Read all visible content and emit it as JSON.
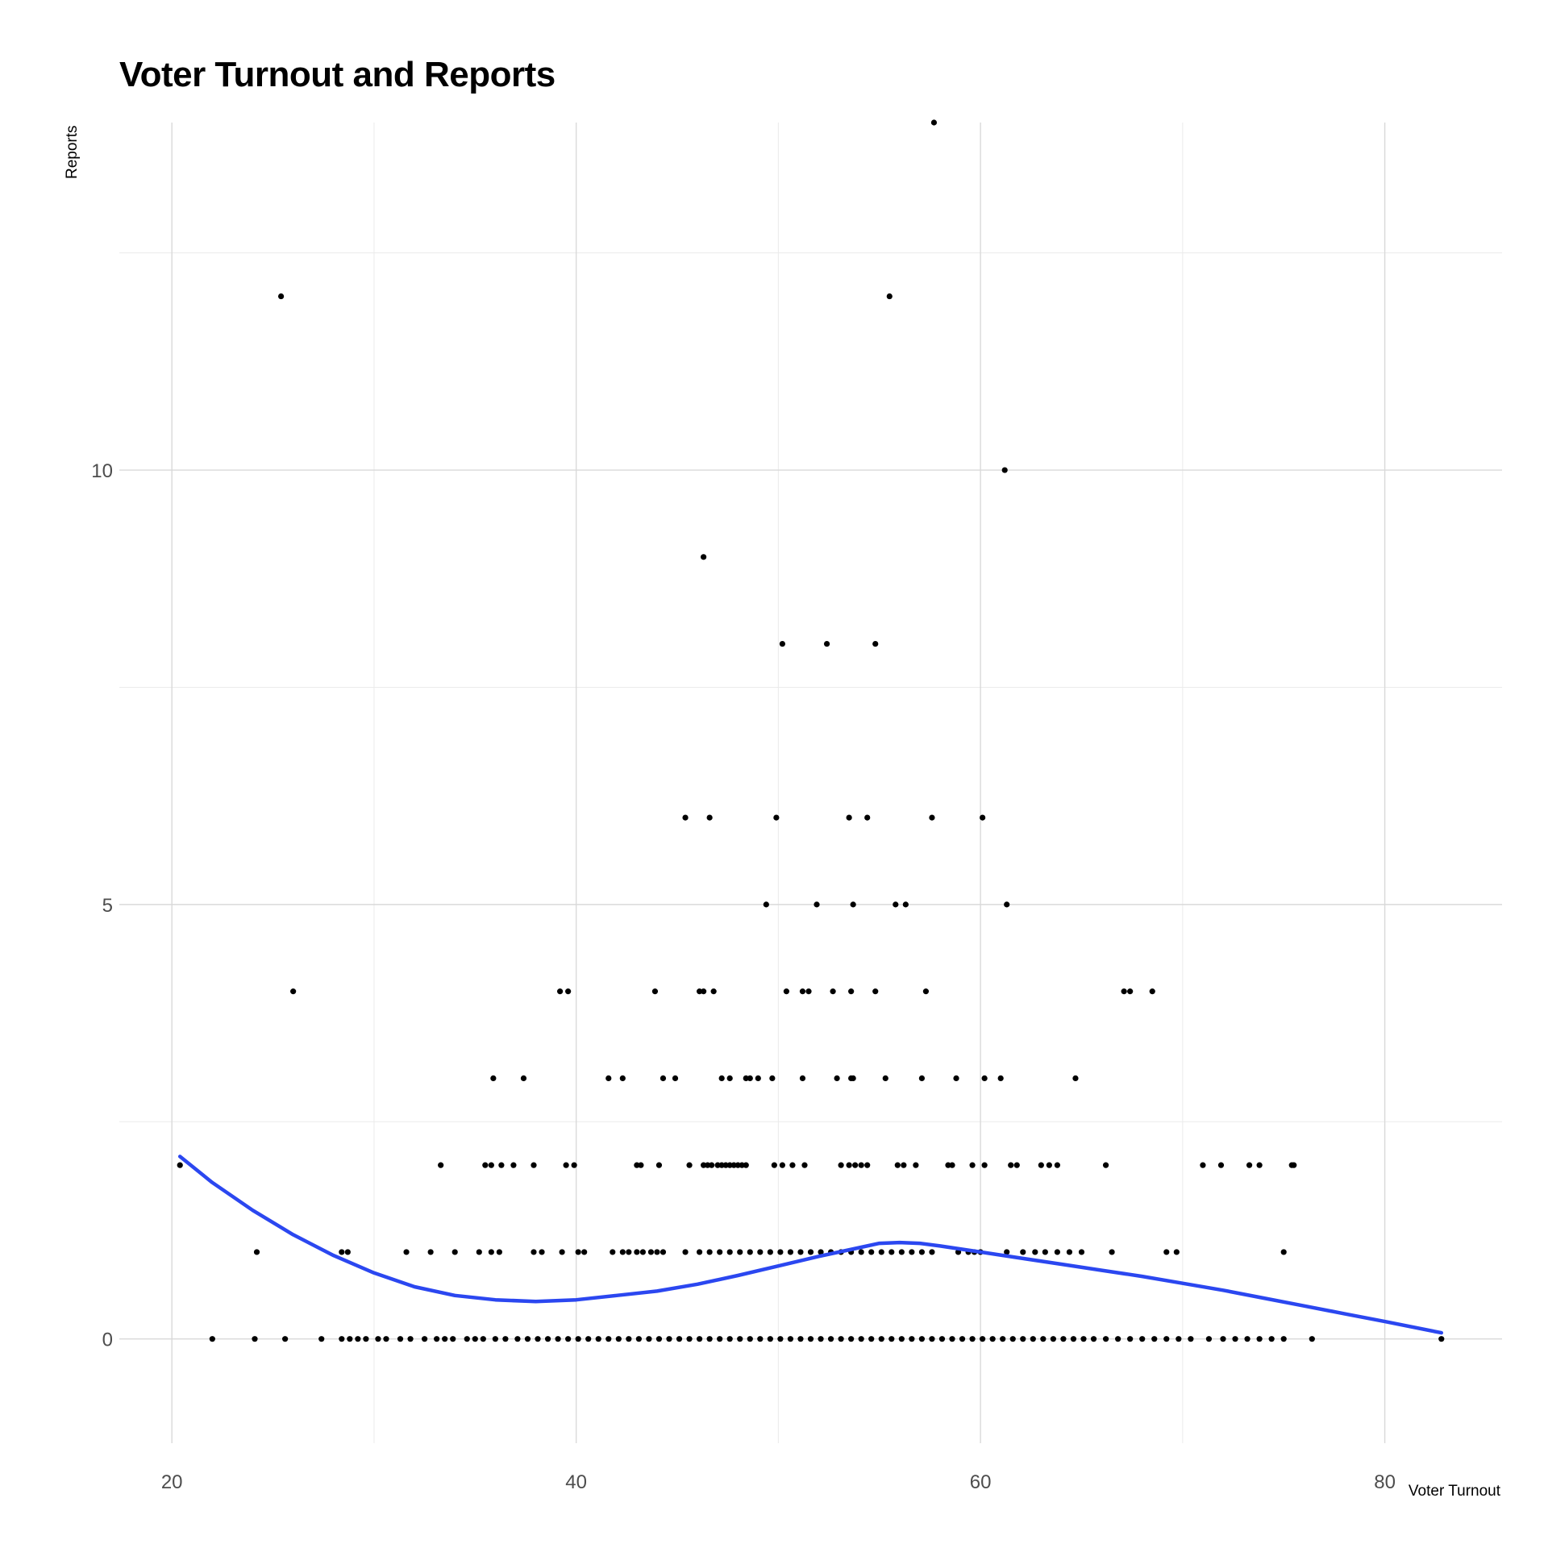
{
  "chart_data": {
    "type": "scatter",
    "title": "Voter Turnout and Reports",
    "xlabel": "Voter Turnout",
    "ylabel": "Reports",
    "xlim": [
      17.4,
      85.8
    ],
    "ylim": [
      -1.2,
      14.0
    ],
    "x_ticks": [
      20,
      40,
      60,
      80
    ],
    "y_ticks": [
      0,
      5,
      10
    ],
    "x_minor": [
      30,
      50,
      70
    ],
    "y_minor": [
      2.5,
      7.5,
      12.5
    ],
    "grid": true,
    "point_color": "#000000",
    "line_color": "#2B47F0",
    "series": [
      {
        "kind": "points",
        "points": [
          [
            20.4,
            2
          ],
          [
            25.4,
            12
          ],
          [
            26.0,
            4
          ],
          [
            24.2,
            1
          ],
          [
            28.4,
            1
          ],
          [
            28.7,
            1
          ],
          [
            33.3,
            2
          ],
          [
            31.6,
            1
          ],
          [
            32.8,
            1
          ],
          [
            34.0,
            1
          ],
          [
            35.2,
            1
          ],
          [
            35.8,
            1
          ],
          [
            36.2,
            1
          ],
          [
            35.5,
            2
          ],
          [
            35.8,
            2
          ],
          [
            36.3,
            2
          ],
          [
            36.9,
            2
          ],
          [
            37.9,
            2
          ],
          [
            35.9,
            3
          ],
          [
            37.4,
            3
          ],
          [
            39.2,
            4
          ],
          [
            39.6,
            4
          ],
          [
            39.5,
            2
          ],
          [
            39.9,
            2
          ],
          [
            37.9,
            1
          ],
          [
            38.3,
            1
          ],
          [
            39.3,
            1
          ],
          [
            40.1,
            1
          ],
          [
            40.4,
            1
          ],
          [
            41.8,
            1
          ],
          [
            42.3,
            1
          ],
          [
            42.6,
            1
          ],
          [
            43.0,
            1
          ],
          [
            43.3,
            1
          ],
          [
            43.7,
            1
          ],
          [
            44.0,
            1
          ],
          [
            44.3,
            1
          ],
          [
            41.6,
            3
          ],
          [
            42.3,
            3
          ],
          [
            44.3,
            3
          ],
          [
            43.9,
            4
          ],
          [
            43.0,
            2
          ],
          [
            43.2,
            2
          ],
          [
            44.1,
            2
          ],
          [
            44.9,
            3
          ],
          [
            45.4,
            6
          ],
          [
            45.6,
            2
          ],
          [
            46.1,
            4
          ],
          [
            46.3,
            4
          ],
          [
            46.8,
            4
          ],
          [
            46.3,
            2
          ],
          [
            46.5,
            2
          ],
          [
            46.7,
            2
          ],
          [
            47.0,
            2
          ],
          [
            47.2,
            2
          ],
          [
            47.4,
            2
          ],
          [
            47.6,
            2
          ],
          [
            47.8,
            2
          ],
          [
            48.0,
            2
          ],
          [
            48.2,
            2
          ],
          [
            48.4,
            2
          ],
          [
            46.3,
            9
          ],
          [
            46.6,
            6
          ],
          [
            47.2,
            3
          ],
          [
            47.6,
            3
          ],
          [
            48.4,
            3
          ],
          [
            48.6,
            3
          ],
          [
            49.0,
            3
          ],
          [
            49.7,
            3
          ],
          [
            49.4,
            5
          ],
          [
            49.9,
            6
          ],
          [
            50.2,
            8
          ],
          [
            50.4,
            4
          ],
          [
            49.8,
            2
          ],
          [
            50.2,
            2
          ],
          [
            50.7,
            2
          ],
          [
            51.3,
            2
          ],
          [
            51.2,
            4
          ],
          [
            51.5,
            4
          ],
          [
            51.2,
            3
          ],
          [
            51.9,
            5
          ],
          [
            52.7,
            4
          ],
          [
            52.4,
            8
          ],
          [
            52.9,
            3
          ],
          [
            53.6,
            3
          ],
          [
            53.7,
            3
          ],
          [
            53.1,
            2
          ],
          [
            53.5,
            2
          ],
          [
            53.8,
            2
          ],
          [
            54.1,
            2
          ],
          [
            54.4,
            2
          ],
          [
            53.6,
            4
          ],
          [
            53.5,
            6
          ],
          [
            53.7,
            5
          ],
          [
            54.4,
            6
          ],
          [
            54.8,
            4
          ],
          [
            54.8,
            8
          ],
          [
            55.3,
            3
          ],
          [
            55.5,
            12
          ],
          [
            55.8,
            5
          ],
          [
            56.3,
            5
          ],
          [
            55.9,
            2
          ],
          [
            56.2,
            2
          ],
          [
            56.8,
            2
          ],
          [
            57.1,
            3
          ],
          [
            57.3,
            4
          ],
          [
            57.6,
            6
          ],
          [
            57.7,
            14
          ],
          [
            58.4,
            2
          ],
          [
            58.6,
            2
          ],
          [
            58.8,
            3
          ],
          [
            59.6,
            2
          ],
          [
            60.2,
            3
          ],
          [
            60.2,
            2
          ],
          [
            61.0,
            3
          ],
          [
            61.3,
            5
          ],
          [
            61.2,
            10
          ],
          [
            60.1,
            6
          ],
          [
            61.5,
            2
          ],
          [
            61.8,
            2
          ],
          [
            63.0,
            2
          ],
          [
            63.4,
            2
          ],
          [
            63.8,
            2
          ],
          [
            64.7,
            3
          ],
          [
            66.2,
            2
          ],
          [
            66.5,
            1
          ],
          [
            67.1,
            4
          ],
          [
            67.4,
            4
          ],
          [
            68.5,
            4
          ],
          [
            69.2,
            1
          ],
          [
            69.7,
            1
          ],
          [
            71.0,
            2
          ],
          [
            71.9,
            2
          ],
          [
            73.3,
            2
          ],
          [
            73.8,
            2
          ],
          [
            75.0,
            1
          ],
          [
            75.4,
            2
          ],
          [
            75.5,
            2
          ],
          [
            58.9,
            1
          ],
          [
            59.4,
            1
          ],
          [
            59.7,
            1
          ],
          [
            60.0,
            1
          ],
          [
            61.3,
            1
          ],
          [
            62.1,
            1
          ],
          [
            62.7,
            1
          ],
          [
            63.2,
            1
          ],
          [
            63.8,
            1
          ],
          [
            64.4,
            1
          ],
          [
            65.0,
            1
          ],
          [
            45.4,
            1
          ],
          [
            46.1,
            1
          ],
          [
            46.6,
            1
          ],
          [
            47.1,
            1
          ],
          [
            47.6,
            1
          ],
          [
            48.1,
            1
          ],
          [
            48.6,
            1
          ],
          [
            49.1,
            1
          ],
          [
            49.6,
            1
          ],
          [
            50.1,
            1
          ],
          [
            50.6,
            1
          ],
          [
            51.1,
            1
          ],
          [
            51.6,
            1
          ],
          [
            52.1,
            1
          ],
          [
            52.6,
            1
          ],
          [
            53.1,
            1
          ],
          [
            53.6,
            1
          ],
          [
            54.1,
            1
          ],
          [
            54.6,
            1
          ],
          [
            55.1,
            1
          ],
          [
            55.6,
            1
          ],
          [
            56.1,
            1
          ],
          [
            56.6,
            1
          ],
          [
            57.1,
            1
          ],
          [
            57.6,
            1
          ],
          [
            22.0,
            0
          ],
          [
            24.1,
            0
          ],
          [
            25.6,
            0
          ],
          [
            27.4,
            0
          ],
          [
            28.4,
            0
          ],
          [
            28.8,
            0
          ],
          [
            29.2,
            0
          ],
          [
            29.6,
            0
          ],
          [
            30.2,
            0
          ],
          [
            30.6,
            0
          ],
          [
            31.3,
            0
          ],
          [
            31.8,
            0
          ],
          [
            32.5,
            0
          ],
          [
            33.1,
            0
          ],
          [
            33.5,
            0
          ],
          [
            33.9,
            0
          ],
          [
            34.6,
            0
          ],
          [
            35.0,
            0
          ],
          [
            35.4,
            0
          ],
          [
            36.0,
            0
          ],
          [
            36.5,
            0
          ],
          [
            37.1,
            0
          ],
          [
            37.6,
            0
          ],
          [
            38.1,
            0
          ],
          [
            38.6,
            0
          ],
          [
            39.1,
            0
          ],
          [
            39.6,
            0
          ],
          [
            40.1,
            0
          ],
          [
            40.6,
            0
          ],
          [
            41.1,
            0
          ],
          [
            41.6,
            0
          ],
          [
            42.1,
            0
          ],
          [
            42.6,
            0
          ],
          [
            43.1,
            0
          ],
          [
            43.6,
            0
          ],
          [
            44.1,
            0
          ],
          [
            44.6,
            0
          ],
          [
            45.1,
            0
          ],
          [
            45.6,
            0
          ],
          [
            46.1,
            0
          ],
          [
            46.6,
            0
          ],
          [
            47.1,
            0
          ],
          [
            47.6,
            0
          ],
          [
            48.1,
            0
          ],
          [
            48.6,
            0
          ],
          [
            49.1,
            0
          ],
          [
            49.6,
            0
          ],
          [
            50.1,
            0
          ],
          [
            50.6,
            0
          ],
          [
            51.1,
            0
          ],
          [
            51.6,
            0
          ],
          [
            52.1,
            0
          ],
          [
            52.6,
            0
          ],
          [
            53.1,
            0
          ],
          [
            53.6,
            0
          ],
          [
            54.1,
            0
          ],
          [
            54.6,
            0
          ],
          [
            55.1,
            0
          ],
          [
            55.6,
            0
          ],
          [
            56.1,
            0
          ],
          [
            56.6,
            0
          ],
          [
            57.1,
            0
          ],
          [
            57.6,
            0
          ],
          [
            58.1,
            0
          ],
          [
            58.6,
            0
          ],
          [
            59.1,
            0
          ],
          [
            59.6,
            0
          ],
          [
            60.1,
            0
          ],
          [
            60.6,
            0
          ],
          [
            61.1,
            0
          ],
          [
            61.6,
            0
          ],
          [
            62.1,
            0
          ],
          [
            62.6,
            0
          ],
          [
            63.1,
            0
          ],
          [
            63.6,
            0
          ],
          [
            64.1,
            0
          ],
          [
            64.6,
            0
          ],
          [
            65.1,
            0
          ],
          [
            65.6,
            0
          ],
          [
            66.2,
            0
          ],
          [
            66.8,
            0
          ],
          [
            67.4,
            0
          ],
          [
            68.0,
            0
          ],
          [
            68.6,
            0
          ],
          [
            69.2,
            0
          ],
          [
            69.8,
            0
          ],
          [
            70.4,
            0
          ],
          [
            71.3,
            0
          ],
          [
            72.0,
            0
          ],
          [
            72.6,
            0
          ],
          [
            73.2,
            0
          ],
          [
            73.8,
            0
          ],
          [
            74.4,
            0
          ],
          [
            75.0,
            0
          ],
          [
            76.4,
            0
          ],
          [
            82.8,
            0
          ]
        ]
      },
      {
        "kind": "smooth",
        "points": [
          [
            20.4,
            2.1
          ],
          [
            22.0,
            1.8
          ],
          [
            24.0,
            1.48
          ],
          [
            26.0,
            1.2
          ],
          [
            28.0,
            0.96
          ],
          [
            30.0,
            0.76
          ],
          [
            32.0,
            0.6
          ],
          [
            34.0,
            0.5
          ],
          [
            36.0,
            0.45
          ],
          [
            38.0,
            0.43
          ],
          [
            40.0,
            0.45
          ],
          [
            42.0,
            0.5
          ],
          [
            44.0,
            0.55
          ],
          [
            46.0,
            0.63
          ],
          [
            48.0,
            0.73
          ],
          [
            50.0,
            0.84
          ],
          [
            52.0,
            0.95
          ],
          [
            54.0,
            1.05
          ],
          [
            55.0,
            1.1
          ],
          [
            56.0,
            1.11
          ],
          [
            57.0,
            1.1
          ],
          [
            58.0,
            1.07
          ],
          [
            60.0,
            1.0
          ],
          [
            62.0,
            0.93
          ],
          [
            64.0,
            0.86
          ],
          [
            66.0,
            0.79
          ],
          [
            68.0,
            0.72
          ],
          [
            70.0,
            0.64
          ],
          [
            72.0,
            0.56
          ],
          [
            74.0,
            0.47
          ],
          [
            76.0,
            0.38
          ],
          [
            78.0,
            0.29
          ],
          [
            80.0,
            0.2
          ],
          [
            82.8,
            0.07
          ]
        ]
      }
    ]
  }
}
